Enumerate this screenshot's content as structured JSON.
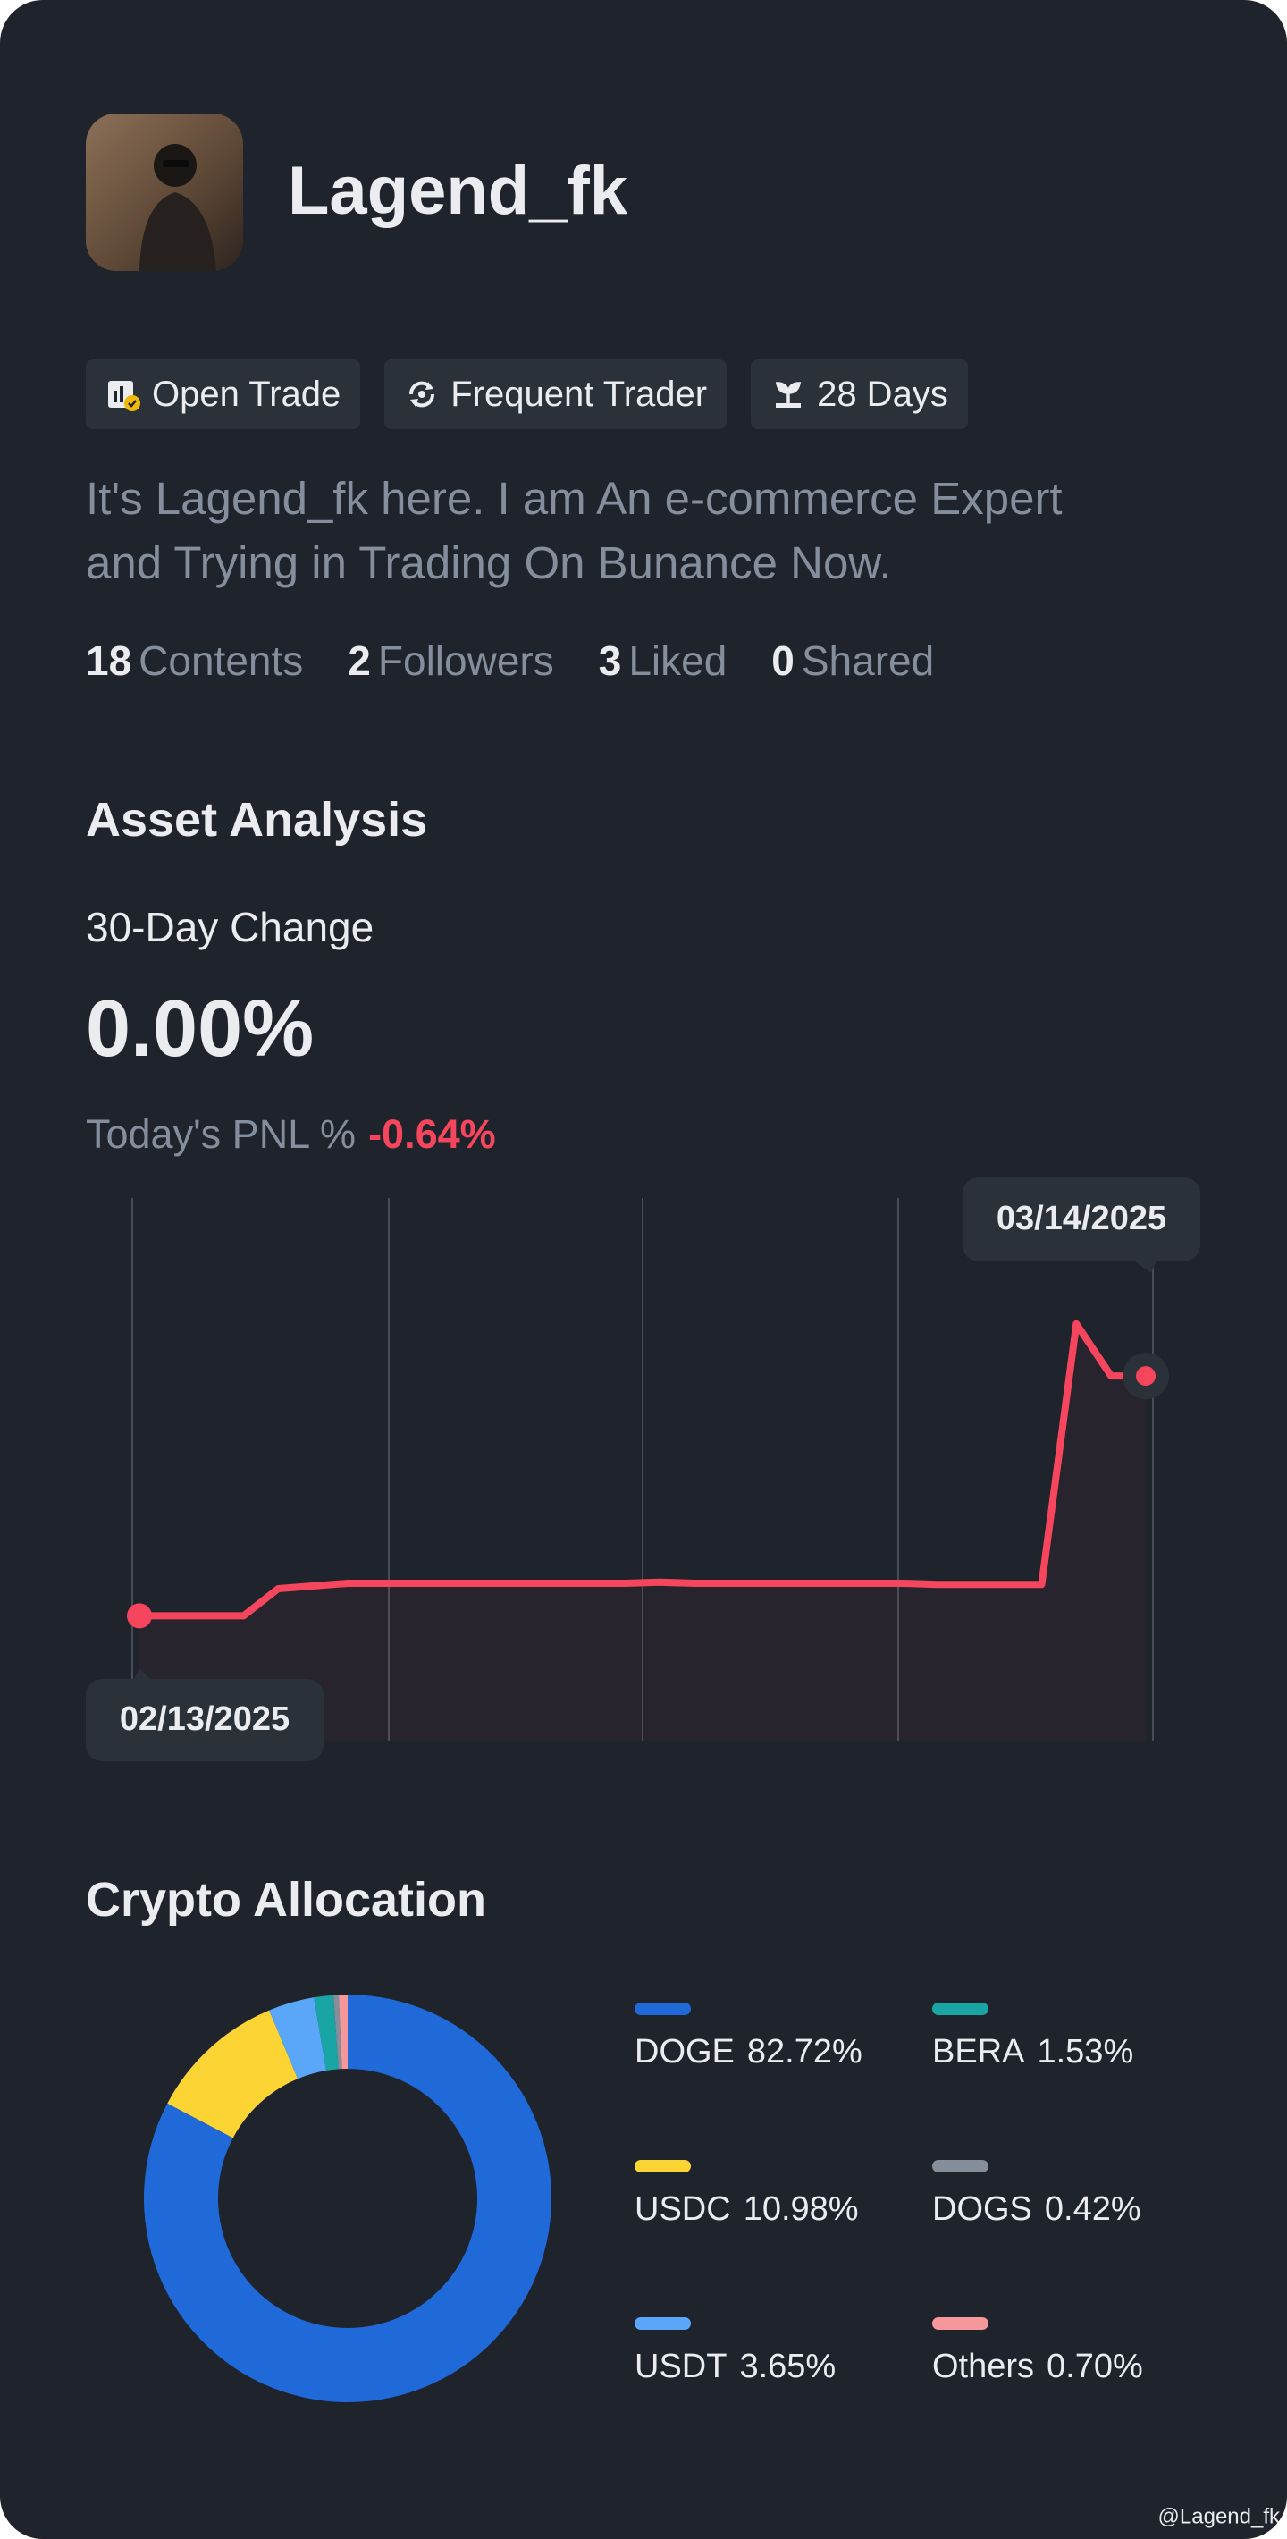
{
  "profile": {
    "name": "Lagend_fk",
    "tags": [
      "Open Trade",
      "Frequent Trader",
      "28 Days"
    ],
    "bio": [
      "It's Lagend_fk here. I am An e-commerce Expert",
      "and Trying in Trading On Bunance Now."
    ],
    "stats": [
      {
        "value": 18,
        "label": "Contents"
      },
      {
        "value": 2,
        "label": "Followers"
      },
      {
        "value": 3,
        "label": "Liked"
      },
      {
        "value": 0,
        "label": "Shared"
      }
    ]
  },
  "asset_analysis": {
    "title": "Asset Analysis",
    "change_label": "30-Day Change",
    "change_value": "0.00%",
    "pnl_label": "Today's PNL %",
    "pnl_value": "-0.64%",
    "chart": {
      "type": "line",
      "start_date": "02/13/2025",
      "end_date": "03/14/2025",
      "color": "#f6465d",
      "grid": true,
      "values": [
        0,
        0,
        0,
        0,
        0.5,
        0.55,
        0.6,
        0.6,
        0.6,
        0.6,
        0.6,
        0.6,
        0.6,
        0.6,
        0.6,
        0.62,
        0.6,
        0.6,
        0.6,
        0.6,
        0.6,
        0.6,
        0.6,
        0.58,
        0.58,
        0.58,
        0.58,
        5.38,
        4.42,
        4.42
      ],
      "ylim": [
        -2.3,
        7.7
      ]
    }
  },
  "allocation": {
    "title": "Crypto Allocation",
    "type": "pie",
    "items": [
      {
        "name": "DOGE",
        "value": 82.72,
        "label": "82.72%",
        "color": "#2069d8"
      },
      {
        "name": "USDC",
        "value": 10.98,
        "label": "10.98%",
        "color": "#fcd535"
      },
      {
        "name": "USDT",
        "value": 3.65,
        "label": "3.65%",
        "color": "#5aa7f9"
      },
      {
        "name": "BERA",
        "value": 1.53,
        "label": "1.53%",
        "color": "#1aa5a5"
      },
      {
        "name": "DOGS",
        "value": 0.42,
        "label": "0.42%",
        "color": "#858e9b"
      },
      {
        "name": "Others",
        "value": 0.7,
        "label": "0.70%",
        "color": "#f5979b"
      }
    ]
  },
  "watermark": "@Lagend_fk"
}
